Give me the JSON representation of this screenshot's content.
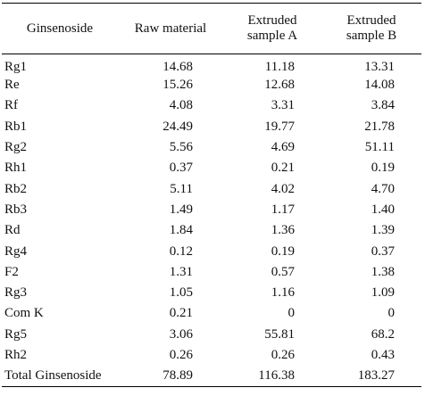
{
  "table": {
    "headers": [
      "Ginsenoside",
      "Raw material",
      "Extruded sample A",
      "Extruded sample B"
    ],
    "header_lines": {
      "col2": [
        "Extruded",
        "sample A"
      ],
      "col3": [
        "Extruded",
        "sample B"
      ]
    },
    "rows": [
      {
        "name": "Rg1",
        "raw": "14.68",
        "a": "11.18",
        "b": "13.31"
      },
      {
        "name": "Re",
        "raw": "15.26",
        "a": "12.68",
        "b": "14.08"
      },
      {
        "name": "Rf",
        "raw": "4.08",
        "a": "3.31",
        "b": "3.84"
      },
      {
        "name": "Rb1",
        "raw": "24.49",
        "a": "19.77",
        "b": "21.78"
      },
      {
        "name": "Rg2",
        "raw": "5.56",
        "a": "4.69",
        "b": "51.11"
      },
      {
        "name": "Rh1",
        "raw": "0.37",
        "a": "0.21",
        "b": "0.19"
      },
      {
        "name": "Rb2",
        "raw": "5.11",
        "a": "4.02",
        "b": "4.70"
      },
      {
        "name": "Rb3",
        "raw": "1.49",
        "a": "1.17",
        "b": "1.40"
      },
      {
        "name": "Rd",
        "raw": "1.84",
        "a": "1.36",
        "b": "1.39"
      },
      {
        "name": "Rg4",
        "raw": "0.12",
        "a": "0.19",
        "b": "0.37"
      },
      {
        "name": "F2",
        "raw": "1.31",
        "a": "0.57",
        "b": "1.38"
      },
      {
        "name": "Rg3",
        "raw": "1.05",
        "a": "1.16",
        "b": "1.09"
      },
      {
        "name": "Com K",
        "raw": "0.21",
        "a": "0",
        "b": "0"
      },
      {
        "name": "Rg5",
        "raw": "3.06",
        "a": "55.81",
        "b": "68.2"
      },
      {
        "name": "Rh2",
        "raw": "0.26",
        "a": "0.26",
        "b": "0.43"
      },
      {
        "name": "Total Ginsenoside",
        "raw": "78.89",
        "a": "116.38",
        "b": "183.27"
      }
    ]
  }
}
